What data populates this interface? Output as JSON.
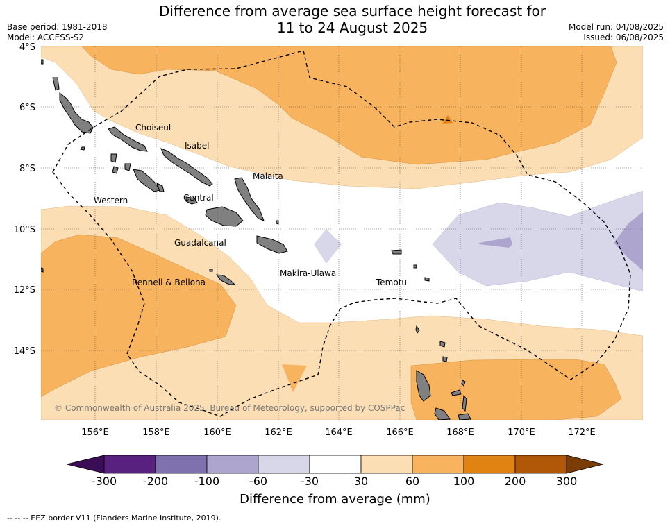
{
  "header": {
    "title_line1": "Difference from average sea surface height forecast for",
    "title_line2": "11 to 24 August 2025",
    "base_period": "Base period: 1981-2018",
    "model": "Model: ACCESS-S2",
    "model_run": "Model run: 04/08/2025",
    "issued": "Issued: 06/08/2025"
  },
  "map": {
    "lat_labels": [
      "4°S",
      "6°S",
      "8°S",
      "10°S",
      "12°S",
      "14°S"
    ],
    "lon_labels": [
      "156°E",
      "158°E",
      "160°E",
      "162°E",
      "164°E",
      "166°E",
      "168°E",
      "170°E",
      "172°E"
    ],
    "provinces": [
      "Choiseul",
      "Isabel",
      "Malaita",
      "Western",
      "Central",
      "Guadalcanal",
      "Makira-Ulawa",
      "Rennell & Bellona",
      "Temotu"
    ],
    "copyright": "© Commonwealth of Australia 2025, Bureau of Meteorology, supported by COSPPac"
  },
  "colorbar": {
    "ticks": [
      "-300",
      "-200",
      "-100",
      "-60",
      "-30",
      "30",
      "60",
      "100",
      "200",
      "300"
    ],
    "colors": [
      "#3b0d57",
      "#58207f",
      "#7f71ae",
      "#aea5cf",
      "#d8d7ea",
      "#ffffff",
      "#fcdeb4",
      "#f8b35e",
      "#e08312",
      "#b05808",
      "#7a3d06"
    ],
    "title": "Difference from average (mm)"
  },
  "legend": {
    "eez": "--  --  -- EEZ border V11 (Flanders Marine Institute, 2019)."
  }
}
